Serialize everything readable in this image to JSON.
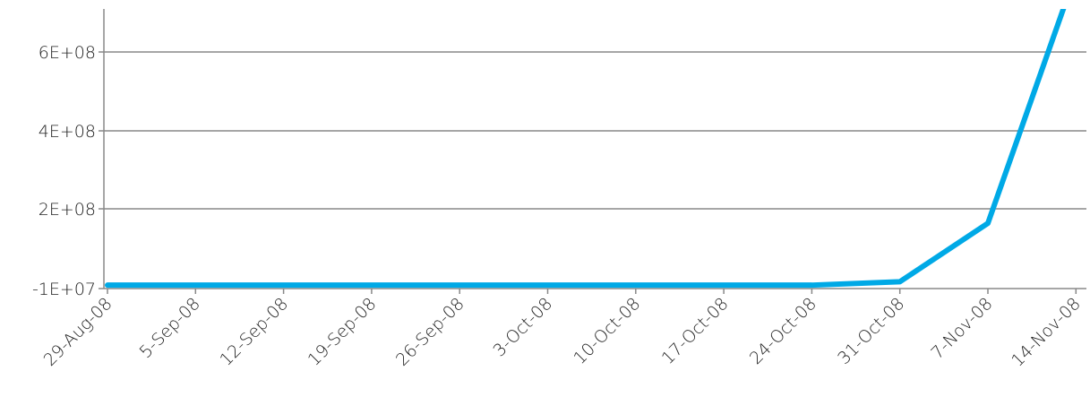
{
  "chart_data": {
    "type": "line",
    "title": "",
    "xlabel": "",
    "ylabel": "",
    "categories": [
      "29-Aug-08",
      "5-Sep-08",
      "12-Sep-08",
      "19-Sep-08",
      "26-Sep-08",
      "3-Oct-08",
      "10-Oct-08",
      "17-Oct-08",
      "24-Oct-08",
      "31-Oct-08",
      "7-Nov-08",
      "14-Nov-08"
    ],
    "series": [
      {
        "values": [
          -1000000,
          -1000000,
          -1000000,
          -1000000,
          -1000000,
          -1000000,
          -1000000,
          -1000000,
          -1000000,
          8000000,
          162000000,
          800000000
        ],
        "color": "#00a9e6"
      }
    ],
    "y_ticks": [
      {
        "value": -10000000,
        "label": "-1E+07"
      },
      {
        "value": 200000000,
        "label": "2E+08"
      },
      {
        "value": 400000000,
        "label": "4E+08"
      },
      {
        "value": 600000000,
        "label": "6E+08"
      }
    ],
    "ylim": [
      -10000000,
      700000000
    ],
    "grid": true,
    "legend": "none",
    "gridline_color": "#888888"
  }
}
